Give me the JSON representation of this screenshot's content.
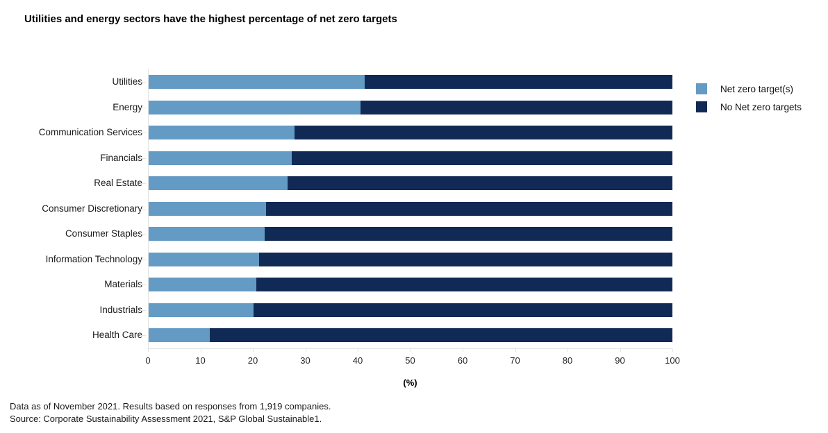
{
  "title": "Utilities and energy sectors have the highest percentage of net zero targets",
  "chart_data": {
    "type": "bar",
    "orientation": "horizontal",
    "stacked": true,
    "title": "Utilities and energy sectors have the highest percentage of net zero targets",
    "categories": [
      "Utilities",
      "Energy",
      "Communication Services",
      "Financials",
      "Real Estate",
      "Consumer Discretionary",
      "Consumer Staples",
      "Information Technology",
      "Materials",
      "Industrials",
      "Health Care"
    ],
    "series": [
      {
        "name": "Net zero target(s)",
        "color": "#649BC4",
        "values": [
          41.3,
          40.4,
          27.8,
          27.3,
          26.5,
          22.4,
          22.1,
          21.1,
          20.6,
          20.0,
          11.7
        ]
      },
      {
        "name": "No Net zero targets",
        "color": "#112A55",
        "values": [
          58.7,
          59.6,
          72.2,
          72.7,
          73.5,
          77.6,
          77.9,
          78.9,
          79.4,
          80.0,
          88.3
        ]
      }
    ],
    "xlabel": "(%)",
    "xlim": [
      0,
      100
    ],
    "xticks": [
      0,
      10,
      20,
      30,
      40,
      50,
      60,
      70,
      80,
      90,
      100
    ],
    "grid": false,
    "legend_position": "right"
  },
  "footer": {
    "line1": "Data as of November 2021. Results based on responses from 1,919 companies.",
    "line2": "Source: Corporate Sustainability Assessment 2021, S&P Global Sustainable1."
  }
}
